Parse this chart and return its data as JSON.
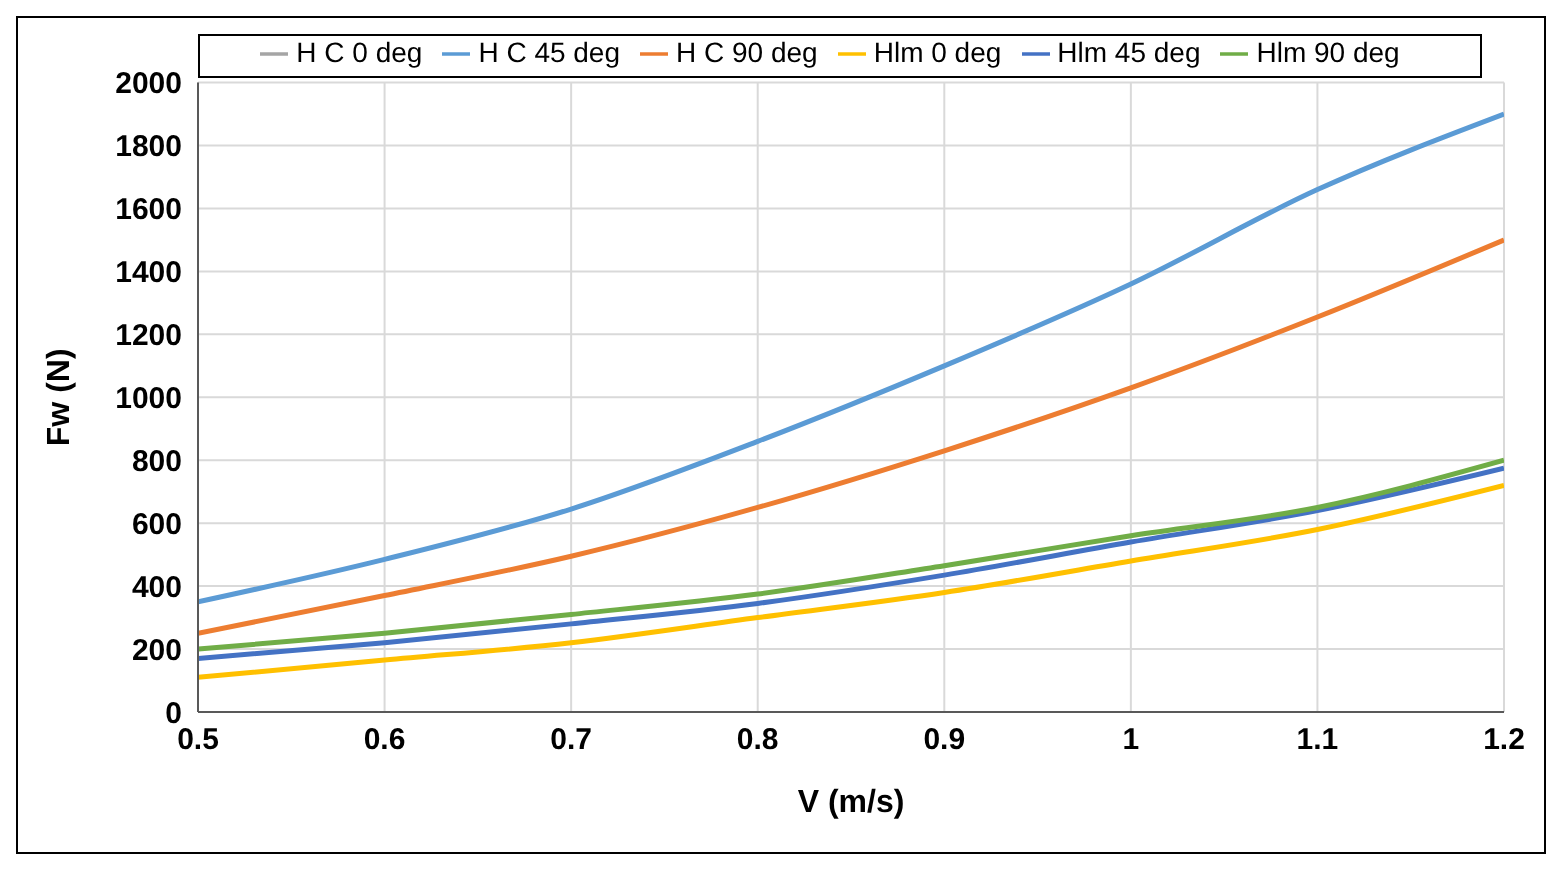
{
  "chart_data": {
    "type": "line",
    "xlabel": "V (m/s)",
    "ylabel": "Fw (N)",
    "x": [
      0.5,
      0.6,
      0.7,
      0.8,
      0.9,
      1,
      1.1,
      1.2
    ],
    "xlim": [
      0.5,
      1.2
    ],
    "xticks": [
      0.5,
      0.6,
      0.7,
      0.8,
      0.9,
      1,
      1.1,
      1.2
    ],
    "ylim": [
      0,
      2000
    ],
    "yticks": [
      0,
      200,
      400,
      600,
      800,
      1000,
      1200,
      1400,
      1600,
      1800,
      2000
    ],
    "grid": true,
    "legend": "top",
    "marker": "none",
    "line_style": "solid",
    "series": [
      {
        "name": "H C 0 deg",
        "color": "#a5a5a5",
        "values": [
          null,
          null,
          null,
          null,
          null,
          null,
          null,
          null
        ]
      },
      {
        "name": "H C 45 deg",
        "color": "#5b9bd5",
        "values": [
          350,
          485,
          645,
          860,
          1100,
          1360,
          1660,
          1900
        ]
      },
      {
        "name": "H C 90 deg",
        "color": "#ed7d31",
        "values": [
          250,
          370,
          495,
          650,
          830,
          1030,
          1255,
          1500
        ]
      },
      {
        "name": "Hlm 0 deg",
        "color": "#ffc000",
        "values": [
          110,
          165,
          220,
          300,
          380,
          480,
          580,
          720
        ]
      },
      {
        "name": "Hlm 45 deg",
        "color": "#4472c4",
        "values": [
          170,
          220,
          280,
          345,
          435,
          540,
          640,
          775
        ]
      },
      {
        "name": "Hlm 90 deg",
        "color": "#70ad47",
        "values": [
          200,
          250,
          310,
          375,
          465,
          560,
          650,
          800
        ]
      }
    ]
  }
}
